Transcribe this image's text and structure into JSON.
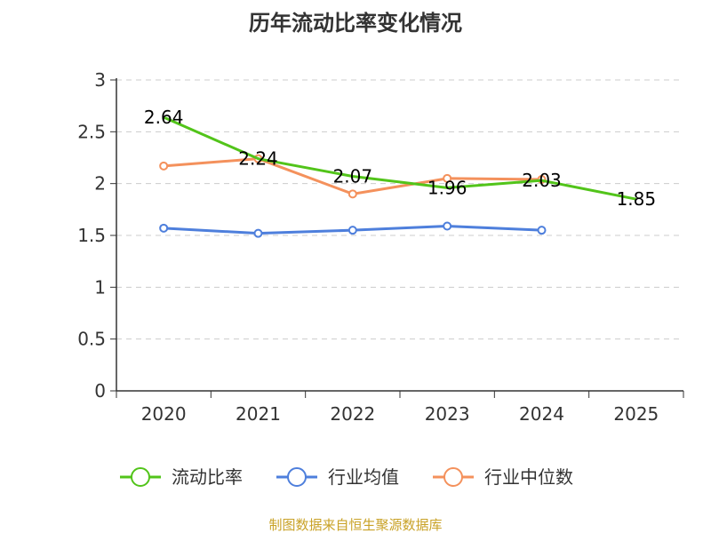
{
  "chart_data": {
    "type": "line",
    "title": "历年流动比率变化情况",
    "categories": [
      "2020",
      "2021",
      "2022",
      "2023",
      "2024",
      "2025"
    ],
    "y_ticks": [
      "0",
      "0.5",
      "1",
      "1.5",
      "2",
      "2.5",
      "3"
    ],
    "ylim": [
      0,
      3
    ],
    "grid": true,
    "legend_position": "bottom",
    "series": [
      {
        "name": "流动比率",
        "color": "#52c41a",
        "values": [
          2.64,
          2.24,
          2.07,
          1.96,
          2.03,
          1.85
        ],
        "labels": [
          "2.64",
          "2.24",
          "2.07",
          "1.96",
          "2.03",
          "1.85"
        ]
      },
      {
        "name": "行业均值",
        "color": "#4e7fdc",
        "values": [
          1.57,
          1.52,
          1.55,
          1.59,
          1.55,
          null
        ]
      },
      {
        "name": "行业中位数",
        "color": "#f4915c",
        "values": [
          2.17,
          2.24,
          1.9,
          2.05,
          2.04,
          null
        ]
      }
    ],
    "source": "制图数据来自恒生聚源数据库",
    "source_color": "#c9a227"
  }
}
